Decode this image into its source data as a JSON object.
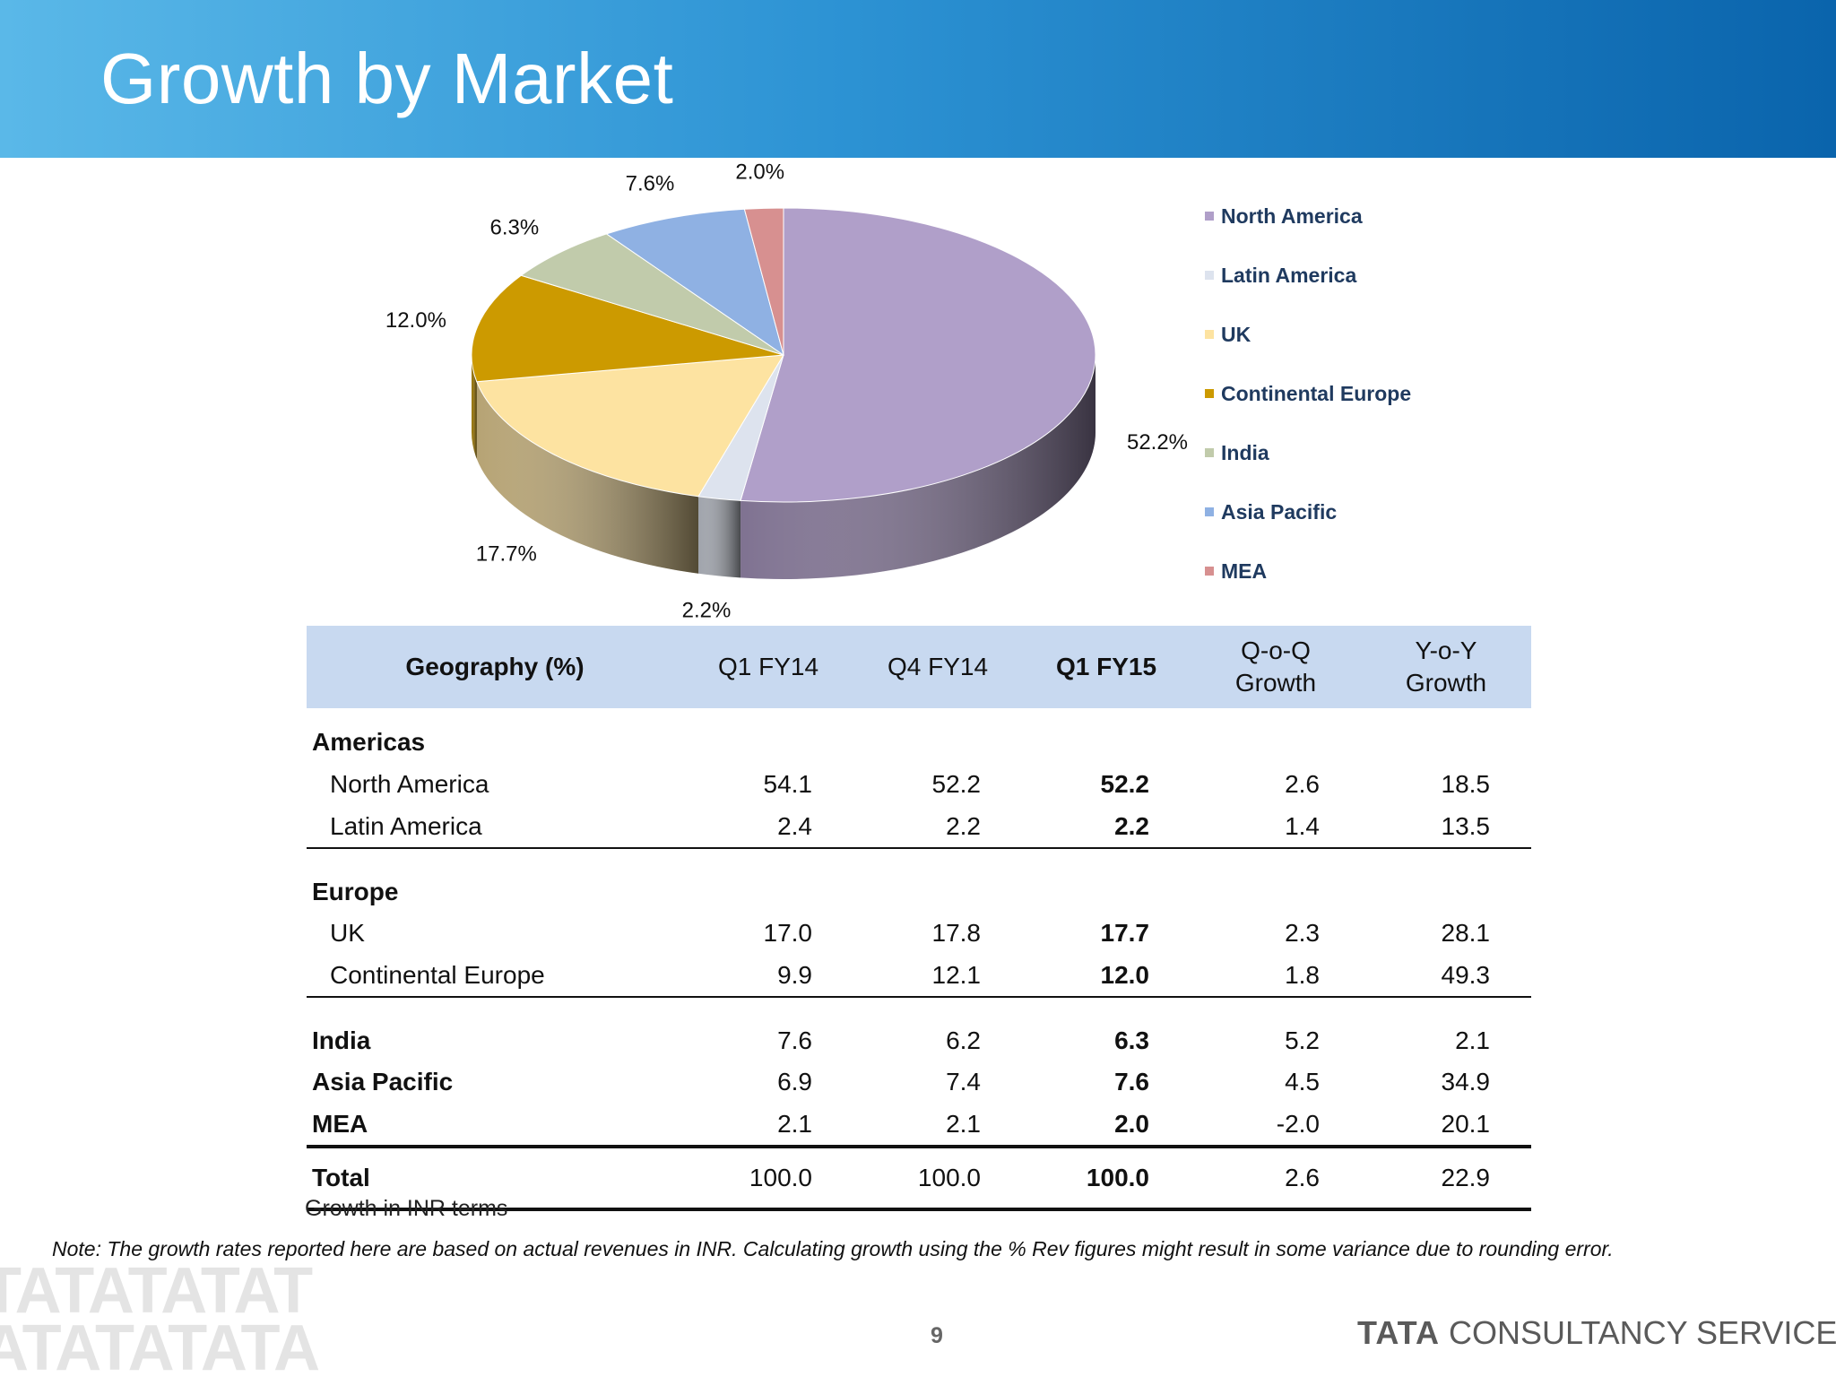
{
  "header": {
    "title": "Growth by Market"
  },
  "chart_data": {
    "type": "pie",
    "title": "",
    "slices": [
      {
        "name": "North America",
        "value": 52.2,
        "label": "52.2%",
        "color": "#b09fc9"
      },
      {
        "name": "Latin America",
        "value": 2.2,
        "label": "2.2%",
        "color": "#dde3ee"
      },
      {
        "name": "UK",
        "value": 17.7,
        "label": "17.7%",
        "color": "#fde3a1"
      },
      {
        "name": "Continental Europe",
        "value": 12.0,
        "label": "12.0%",
        "color": "#cc9a00"
      },
      {
        "name": "India",
        "value": 6.3,
        "label": "6.3%",
        "color": "#c1cbab"
      },
      {
        "name": "Asia Pacific",
        "value": 7.6,
        "label": "7.6%",
        "color": "#8fb1e3"
      },
      {
        "name": "MEA",
        "value": 2.0,
        "label": "2.0%",
        "color": "#d79090"
      }
    ],
    "legend_position": "right"
  },
  "table": {
    "headers": [
      {
        "text": "Geography (%)"
      },
      {
        "text": "Q1 FY14"
      },
      {
        "text": "Q4 FY14"
      },
      {
        "text": "Q1 FY15"
      },
      {
        "line1": "Q-o-Q",
        "line2": "Growth"
      },
      {
        "line1": "Y-o-Y",
        "line2": "Growth"
      }
    ],
    "groups": {
      "americas": "Americas",
      "europe": "Europe"
    },
    "rows": {
      "north_america": {
        "name": "North America",
        "q1fy14": "54.1",
        "q4fy14": "52.2",
        "q1fy15": "52.2",
        "qoq": "2.6",
        "yoy": "18.5"
      },
      "latin_america": {
        "name": "Latin America",
        "q1fy14": "2.4",
        "q4fy14": "2.2",
        "q1fy15": "2.2",
        "qoq": "1.4",
        "yoy": "13.5"
      },
      "uk": {
        "name": "UK",
        "q1fy14": "17.0",
        "q4fy14": "17.8",
        "q1fy15": "17.7",
        "qoq": "2.3",
        "yoy": "28.1"
      },
      "continental_europe": {
        "name": "Continental Europe",
        "q1fy14": "9.9",
        "q4fy14": "12.1",
        "q1fy15": "12.0",
        "qoq": "1.8",
        "yoy": "49.3"
      },
      "india": {
        "name": "India",
        "q1fy14": "7.6",
        "q4fy14": "6.2",
        "q1fy15": "6.3",
        "qoq": "5.2",
        "yoy": "2.1"
      },
      "asia_pacific": {
        "name": "Asia Pacific",
        "q1fy14": "6.9",
        "q4fy14": "7.4",
        "q1fy15": "7.6",
        "qoq": "4.5",
        "yoy": "34.9"
      },
      "mea": {
        "name": "MEA",
        "q1fy14": "2.1",
        "q4fy14": "2.1",
        "q1fy15": "2.0",
        "qoq": "-2.0",
        "yoy": "20.1"
      },
      "total": {
        "name": "Total",
        "q1fy14": "100.0",
        "q4fy14": "100.0",
        "q1fy15": "100.0",
        "qoq": "2.6",
        "yoy": "22.9"
      }
    }
  },
  "caption": "Growth in INR terms",
  "note": "Note: The growth rates reported here are based on actual revenues in INR. Calculating growth using the % Rev figures might result in some variance due to rounding error.",
  "footer": {
    "page_number": "9",
    "brand_bold": "TATA",
    "brand_rest": "CONSULTANCY SERVICES",
    "watermark_line1": "TATATATAT",
    "watermark_line2": "ATATATATA"
  }
}
